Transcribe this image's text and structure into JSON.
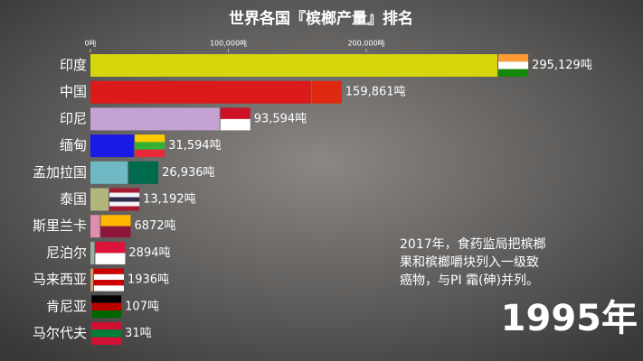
{
  "chart_data": {
    "type": "bar",
    "orientation": "horizontal",
    "title": "世界各国『槟榔产量』排名",
    "categories": [
      "印度",
      "中国",
      "印尼",
      "缅甸",
      "孟加拉国",
      "泰国",
      "斯里兰卡",
      "尼泊尔",
      "马来西亚",
      "肯尼亚",
      "马尔代夫"
    ],
    "values": [
      295129,
      159861,
      93594,
      31594,
      26936,
      13192,
      6872,
      2894,
      1936,
      107,
      31
    ],
    "value_labels": [
      "295,129吨",
      "159,861吨",
      "93,594吨",
      "31,594吨",
      "26,936吨",
      "13,192吨",
      "6872吨",
      "2894吨",
      "1936吨",
      "107吨",
      "31吨"
    ],
    "colors": [
      "#d6d60c",
      "#dc1a1a",
      "#c4a2d4",
      "#1a1ae6",
      "#70b8c4",
      "#b2b67c",
      "#e08eb0",
      "#9ab0a0",
      "#c8a070",
      "#8a9ab8",
      "#c0c0c0"
    ],
    "xlim": [
      0,
      400000
    ],
    "xticks": [
      {
        "value": 0,
        "label": "0吨"
      },
      {
        "value": 100000,
        "label": "100,000吨"
      },
      {
        "value": 200000,
        "label": "200,000吨"
      }
    ],
    "annotation": [
      "2017年，食药监局把槟榔",
      "果和槟榔嚼块列入一级致",
      "癌物，与PI 霜(砷)并列。"
    ],
    "year": "1995年"
  }
}
